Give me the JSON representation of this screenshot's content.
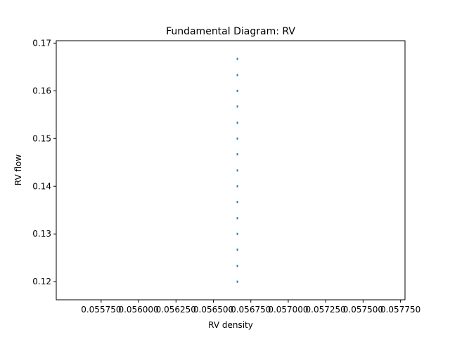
{
  "chart_data": {
    "type": "scatter",
    "title": "Fundamental Diagram: RV",
    "xlabel": "RV density",
    "ylabel": "RV flow",
    "xlim": [
      0.05545,
      0.05778
    ],
    "ylim": [
      0.1162,
      0.1705
    ],
    "xticks": [
      0.05575,
      0.056,
      0.05625,
      0.0565,
      0.05675,
      0.057,
      0.05725,
      0.0575,
      0.05775
    ],
    "xtick_labels": [
      "0.055750",
      "0.056000",
      "0.056250",
      "0.056500",
      "0.056750",
      "0.057000",
      "0.057250",
      "0.057500",
      "0.057750"
    ],
    "yticks": [
      0.12,
      0.13,
      0.14,
      0.15,
      0.16,
      0.17
    ],
    "ytick_labels": [
      "0.12",
      "0.13",
      "0.14",
      "0.15",
      "0.16",
      "0.17"
    ],
    "grid": false,
    "marker_color": "#1f77b4",
    "points": [
      {
        "x": 0.05666,
        "y": 0.12
      },
      {
        "x": 0.05666,
        "y": 0.1233
      },
      {
        "x": 0.05666,
        "y": 0.1267
      },
      {
        "x": 0.05666,
        "y": 0.13
      },
      {
        "x": 0.05666,
        "y": 0.1333
      },
      {
        "x": 0.05666,
        "y": 0.1367
      },
      {
        "x": 0.05666,
        "y": 0.14
      },
      {
        "x": 0.05666,
        "y": 0.1433
      },
      {
        "x": 0.05666,
        "y": 0.1467
      },
      {
        "x": 0.05666,
        "y": 0.15
      },
      {
        "x": 0.05666,
        "y": 0.1533
      },
      {
        "x": 0.05666,
        "y": 0.1567
      },
      {
        "x": 0.05666,
        "y": 0.16
      },
      {
        "x": 0.05666,
        "y": 0.1633
      },
      {
        "x": 0.05666,
        "y": 0.1667
      }
    ]
  }
}
